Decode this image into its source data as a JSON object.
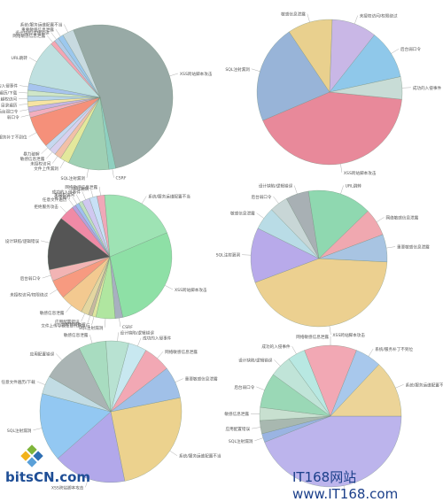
{
  "watermark": {
    "left_text": "bitsCN.com",
    "right_text": "IT168网站 www.IT168.com"
  },
  "colors": {
    "slice_palette": [
      "#a8bfa8",
      "#c8d6c8",
      "#8fb0d8",
      "#f5a585",
      "#e9e3a0",
      "#bcd7c0",
      "#f0b0c0",
      "#c9b0e0",
      "#9ad0e6",
      "#f2c87e",
      "#b8e2b8",
      "#e6e6e6"
    ],
    "stroke": "#6f8a78"
  },
  "chart_data": [
    {
      "type": "pie",
      "slices": [
        {
          "label": "XSS跨站脚本攻击",
          "value": 52,
          "color": "#98aaa6"
        },
        {
          "label": "CSRF",
          "value": 1.5,
          "color": "#8fd0c0"
        },
        {
          "label": "SQL注射漏洞",
          "value": 9,
          "color": "#9fd0b4"
        },
        {
          "label": "文件上传漏洞",
          "value": 2,
          "color": "#e3e89c"
        },
        {
          "label": "未授权访问",
          "value": 1.5,
          "color": "#f2c0a8"
        },
        {
          "label": "敏感信息泄露",
          "value": 1.5,
          "color": "#d8d0ee"
        },
        {
          "label": "暴力破解",
          "value": 1.2,
          "color": "#c6d8f0"
        },
        {
          "label": "系统/服务补丁不到位",
          "value": 7,
          "color": "#f5907a"
        },
        {
          "label": "弱口令",
          "value": 1.2,
          "color": "#f2aebe"
        },
        {
          "label": "后台弱口令",
          "value": 1.2,
          "color": "#c6b5e2"
        },
        {
          "label": "目录遍历",
          "value": 1.2,
          "color": "#f7e4a2"
        },
        {
          "label": "越权访问",
          "value": 1.2,
          "color": "#b9d6ea"
        },
        {
          "label": "任意文件遍历/下载",
          "value": 1.2,
          "color": "#cfe6c8"
        },
        {
          "label": "成功的入侵事件",
          "value": 1.5,
          "color": "#a7c4ee"
        },
        {
          "label": "URL跳转",
          "value": 10,
          "color": "#bfe0e0"
        },
        {
          "label": "网络敏感信息泄露",
          "value": 1,
          "color": "#f4a6b4"
        },
        {
          "label": "设计缺陷/逻辑错误",
          "value": 1,
          "color": "#b2cce8"
        },
        {
          "label": "重要敏感信息泄露",
          "value": 1.2,
          "color": "#9cc8ee"
        },
        {
          "label": "系统/服务运维配置不当",
          "value": 2.5,
          "color": "#c8dae0"
        }
      ]
    },
    {
      "type": "pie",
      "slices": [
        {
          "label": "XSS跨站脚本攻击",
          "value": 42,
          "color": "#e8899a"
        },
        {
          "label": "SQL注射漏洞",
          "value": 22,
          "color": "#98b4d8"
        },
        {
          "label": "敏感信息泄露",
          "value": 10,
          "color": "#e9d08e"
        },
        {
          "label": "未授权访问/权限绕过",
          "value": 10,
          "color": "#c9b7e6"
        },
        {
          "label": "后台弱口令",
          "value": 11,
          "color": "#8fc8ea"
        },
        {
          "label": "成功的入侵事件",
          "value": 5,
          "color": "#c8dcd6"
        }
      ]
    },
    {
      "type": "pie",
      "slices": [
        {
          "label": "XSS跨站脚本攻击",
          "value": 28,
          "color": "#8ee0a6"
        },
        {
          "label": "CSRF",
          "value": 2,
          "color": "#a8b0c0"
        },
        {
          "label": "SQL注射漏洞",
          "value": 5,
          "color": "#b0e6a0"
        },
        {
          "label": "文件上传导致任意代码执行",
          "value": 1,
          "color": "#dfe6a0"
        },
        {
          "label": "远程代码执行",
          "value": 1,
          "color": "#c8b8a0"
        },
        {
          "label": "应用配置错误",
          "value": 2,
          "color": "#e4d6a0"
        },
        {
          "label": "敏感信息泄露",
          "value": 6,
          "color": "#f3c990"
        },
        {
          "label": "未授权访问/权限绕过",
          "value": 5,
          "color": "#f79a80"
        },
        {
          "label": "后台弱口令",
          "value": 3,
          "color": "#f2b4b4"
        },
        {
          "label": "设计缺陷/逻辑错误",
          "value": 14,
          "color": "#555555"
        },
        {
          "label": "拒绝服务攻击",
          "value": 4,
          "color": "#f08aa6"
        },
        {
          "label": "任意文件遍历",
          "value": 1,
          "color": "#b8a0e0"
        },
        {
          "label": "命令执行",
          "value": 1,
          "color": "#a0c0f0"
        },
        {
          "label": "未授权访问",
          "value": 1,
          "color": "#c0e0c0"
        },
        {
          "label": "成功的入侵事件",
          "value": 2,
          "color": "#d0c8f0"
        },
        {
          "label": "URL跳转",
          "value": 2,
          "color": "#c8e0f6"
        },
        {
          "label": "网络敏感信息泄露",
          "value": 2,
          "color": "#f0a8b8"
        },
        {
          "label": "系统/服务运维配置不当",
          "value": 20,
          "color": "#9ee3b4"
        }
      ]
    },
    {
      "type": "pie",
      "slices": [
        {
          "label": "XSS跨站脚本攻击",
          "value": 40,
          "color": "#ecd090"
        },
        {
          "label": "SQL注射漏洞",
          "value": 12,
          "color": "#b8aaea"
        },
        {
          "label": "敏感信息泄露",
          "value": 5,
          "color": "#b9dce6"
        },
        {
          "label": "后台弱口令",
          "value": 4,
          "color": "#c8d6d6"
        },
        {
          "label": "设计缺陷/逻辑错误",
          "value": 5,
          "color": "#a8b0b4"
        },
        {
          "label": "URL跳转",
          "value": 14,
          "color": "#8fd8b0"
        },
        {
          "label": "网络敏感信息泄露",
          "value": 6,
          "color": "#f0a8b0"
        },
        {
          "label": "重要敏感信息泄露",
          "value": 6,
          "color": "#a8c4e2"
        }
      ]
    },
    {
      "type": "pie",
      "slices": [
        {
          "label": "系统/服务运维配置不当",
          "value": 24,
          "color": "#ecd28e"
        },
        {
          "label": "XSS跨站脚本攻击",
          "value": 16,
          "color": "#b2a8ea"
        },
        {
          "label": "SQL注射漏洞",
          "value": 15,
          "color": "#93c8f2"
        },
        {
          "label": "任意文件遍历/下载",
          "value": 4,
          "color": "#c2dce4"
        },
        {
          "label": "应用配置错误",
          "value": 9,
          "color": "#aab4b4"
        },
        {
          "label": "敏感信息泄露",
          "value": 6,
          "color": "#a8dcc0"
        },
        {
          "label": "设计缺陷/逻辑错误",
          "value": 5,
          "color": "#b8e2d2"
        },
        {
          "label": "成功的入侵事件",
          "value": 4,
          "color": "#c8e8f0"
        },
        {
          "label": "网络敏感信息泄露",
          "value": 6,
          "color": "#f2a8b4"
        },
        {
          "label": "重要敏感信息泄露",
          "value": 7,
          "color": "#a0c0e8"
        }
      ]
    },
    {
      "type": "pie",
      "slices": [
        {
          "label": "XSS跨站脚本攻击",
          "value": 44,
          "color": "#bcb4ec"
        },
        {
          "label": "SQL注射漏洞",
          "value": 2,
          "color": "#9ab4e2"
        },
        {
          "label": "应用配置错误",
          "value": 3,
          "color": "#a8b8b0"
        },
        {
          "label": "敏感信息泄露",
          "value": 3,
          "color": "#c8e0d0"
        },
        {
          "label": "后台弱口令",
          "value": 8,
          "color": "#9ad8b6"
        },
        {
          "label": "设计缺陷/逻辑错误",
          "value": 5,
          "color": "#c0e4d8"
        },
        {
          "label": "成功的入侵事件",
          "value": 4,
          "color": "#b8e8e2"
        },
        {
          "label": "网络敏感信息泄露",
          "value": 12,
          "color": "#f2a8b4"
        },
        {
          "label": "系统/服务补丁不到位",
          "value": 6,
          "color": "#a8c8ec"
        },
        {
          "label": "系统/服务运维配置不当",
          "value": 13,
          "color": "#ecd498"
        }
      ]
    }
  ]
}
